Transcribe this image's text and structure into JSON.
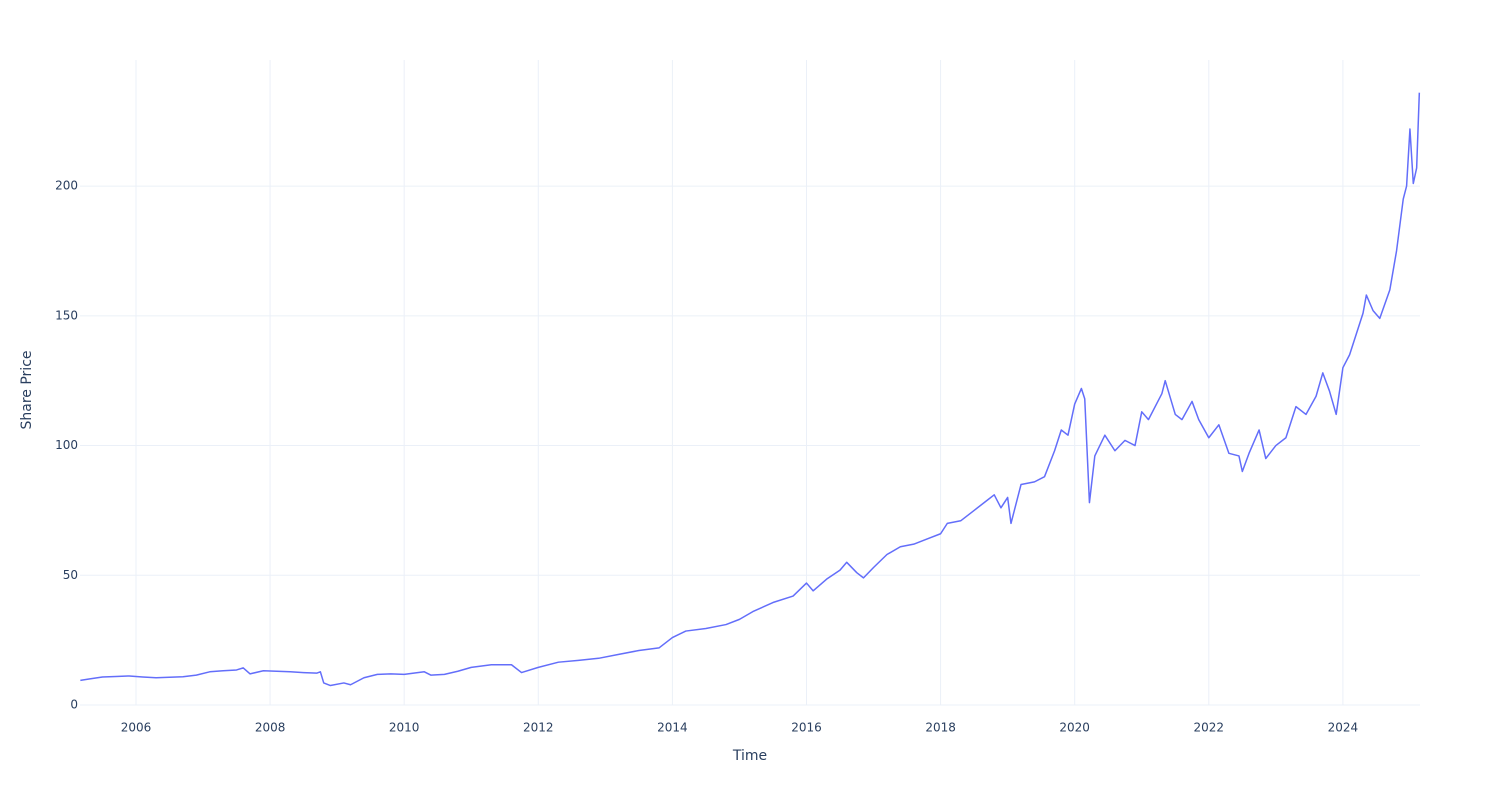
{
  "chart_data": {
    "type": "line",
    "x_label": "Time",
    "y_label": "Share Price",
    "color": "#636efa",
    "grid": true,
    "xlim": [
      2005.165,
      2025.15
    ],
    "xticks": [
      2006,
      2008,
      2010,
      2012,
      2014,
      2016,
      2018,
      2020,
      2022,
      2024
    ],
    "ylim": [
      0,
      248.6
    ],
    "yticks": [
      0,
      50,
      100,
      150,
      200
    ],
    "x": [
      2005.17,
      2005.3,
      2005.5,
      2005.7,
      2005.9,
      2006.1,
      2006.3,
      2006.5,
      2006.7,
      2006.9,
      2007.1,
      2007.3,
      2007.5,
      2007.6,
      2007.7,
      2007.9,
      2008.1,
      2008.3,
      2008.5,
      2008.7,
      2008.75,
      2008.8,
      2008.9,
      2009.1,
      2009.2,
      2009.4,
      2009.6,
      2009.8,
      2010.0,
      2010.2,
      2010.3,
      2010.4,
      2010.6,
      2010.8,
      2011.0,
      2011.3,
      2011.6,
      2011.75,
      2012.0,
      2012.3,
      2012.6,
      2012.9,
      2013.2,
      2013.5,
      2013.8,
      2014.0,
      2014.2,
      2014.5,
      2014.8,
      2015.0,
      2015.2,
      2015.5,
      2015.8,
      2016.0,
      2016.1,
      2016.3,
      2016.5,
      2016.6,
      2016.75,
      2016.85,
      2017.0,
      2017.2,
      2017.4,
      2017.6,
      2017.8,
      2018.0,
      2018.1,
      2018.3,
      2018.5,
      2018.7,
      2018.8,
      2018.9,
      2019.0,
      2019.05,
      2019.2,
      2019.4,
      2019.55,
      2019.7,
      2019.8,
      2019.9,
      2020.0,
      2020.1,
      2020.15,
      2020.22,
      2020.3,
      2020.45,
      2020.6,
      2020.75,
      2020.9,
      2021.0,
      2021.1,
      2021.3,
      2021.35,
      2021.5,
      2021.6,
      2021.75,
      2021.85,
      2022.0,
      2022.15,
      2022.3,
      2022.45,
      2022.5,
      2022.6,
      2022.75,
      2022.85,
      2023.0,
      2023.15,
      2023.3,
      2023.45,
      2023.6,
      2023.7,
      2023.8,
      2023.9,
      2024.0,
      2024.1,
      2024.2,
      2024.3,
      2024.35,
      2024.45,
      2024.55,
      2024.7,
      2024.8,
      2024.9,
      2024.95,
      2025.0,
      2025.05,
      2025.1,
      2025.14
    ],
    "values": [
      9.5,
      10,
      10.8,
      11,
      11.2,
      10.8,
      10.5,
      10.7,
      10.9,
      11.5,
      12.8,
      13.2,
      13.5,
      14.3,
      12,
      13.2,
      13,
      12.8,
      12.5,
      12.3,
      12.8,
      8.5,
      7.5,
      8.5,
      7.8,
      10.5,
      11.8,
      12,
      11.8,
      12.5,
      12.8,
      11.5,
      11.8,
      13,
      14.5,
      15.5,
      15.5,
      12.5,
      14.5,
      16.5,
      17.2,
      18,
      19.5,
      21,
      22,
      26,
      28.5,
      29.5,
      31,
      33,
      36,
      39.5,
      42,
      47,
      44,
      48.5,
      52,
      55,
      51,
      49,
      53,
      58,
      61,
      62,
      64,
      66,
      70,
      71,
      75,
      79,
      81,
      76,
      80,
      70,
      85,
      86,
      88,
      98,
      106,
      104,
      116,
      122,
      118,
      78,
      96,
      104,
      98,
      102,
      100,
      113,
      110,
      120,
      125,
      112,
      110,
      117,
      110,
      103,
      108,
      97,
      96,
      90,
      97,
      106,
      95,
      100,
      103,
      115,
      112,
      119,
      128,
      121,
      112,
      130,
      135,
      143,
      151,
      158,
      152,
      149,
      160,
      175,
      195,
      200,
      222,
      201,
      207,
      236
    ]
  }
}
